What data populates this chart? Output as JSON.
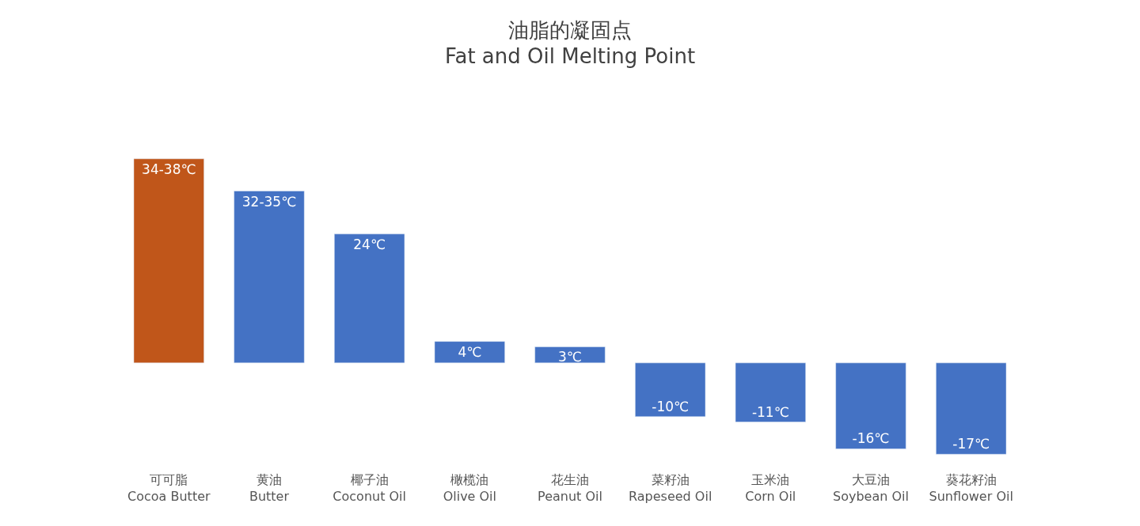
{
  "chart_data": {
    "type": "bar",
    "title": "油脂的凝固点",
    "subtitle": "Fat and Oil Melting Point",
    "categories": [
      "可可脂\nCocoa Butter",
      "黄油\nButter",
      "椰子油\nCoconut Oil",
      "橄榄油\nOlive Oil",
      "花生油\nPeanut Oil",
      "菜籽油\nRapeseed Oil",
      "玉米油\nCorn Oil",
      "大豆油\nSoybean Oil",
      "葵花籽油\nSunflower Oil"
    ],
    "values": [
      38,
      32,
      24,
      4,
      3,
      -10,
      -11,
      -16,
      -17
    ],
    "value_labels": [
      "34-38℃",
      "32-35℃",
      "24℃",
      "4℃",
      "3℃",
      "-10℃",
      "-11℃",
      "-16℃",
      "-17℃"
    ],
    "colors": [
      "#c0561a",
      "#4472c4",
      "#4472c4",
      "#4472c4",
      "#4472c4",
      "#4472c4",
      "#4472c4",
      "#4472c4",
      "#4472c4"
    ],
    "legend": false
  }
}
